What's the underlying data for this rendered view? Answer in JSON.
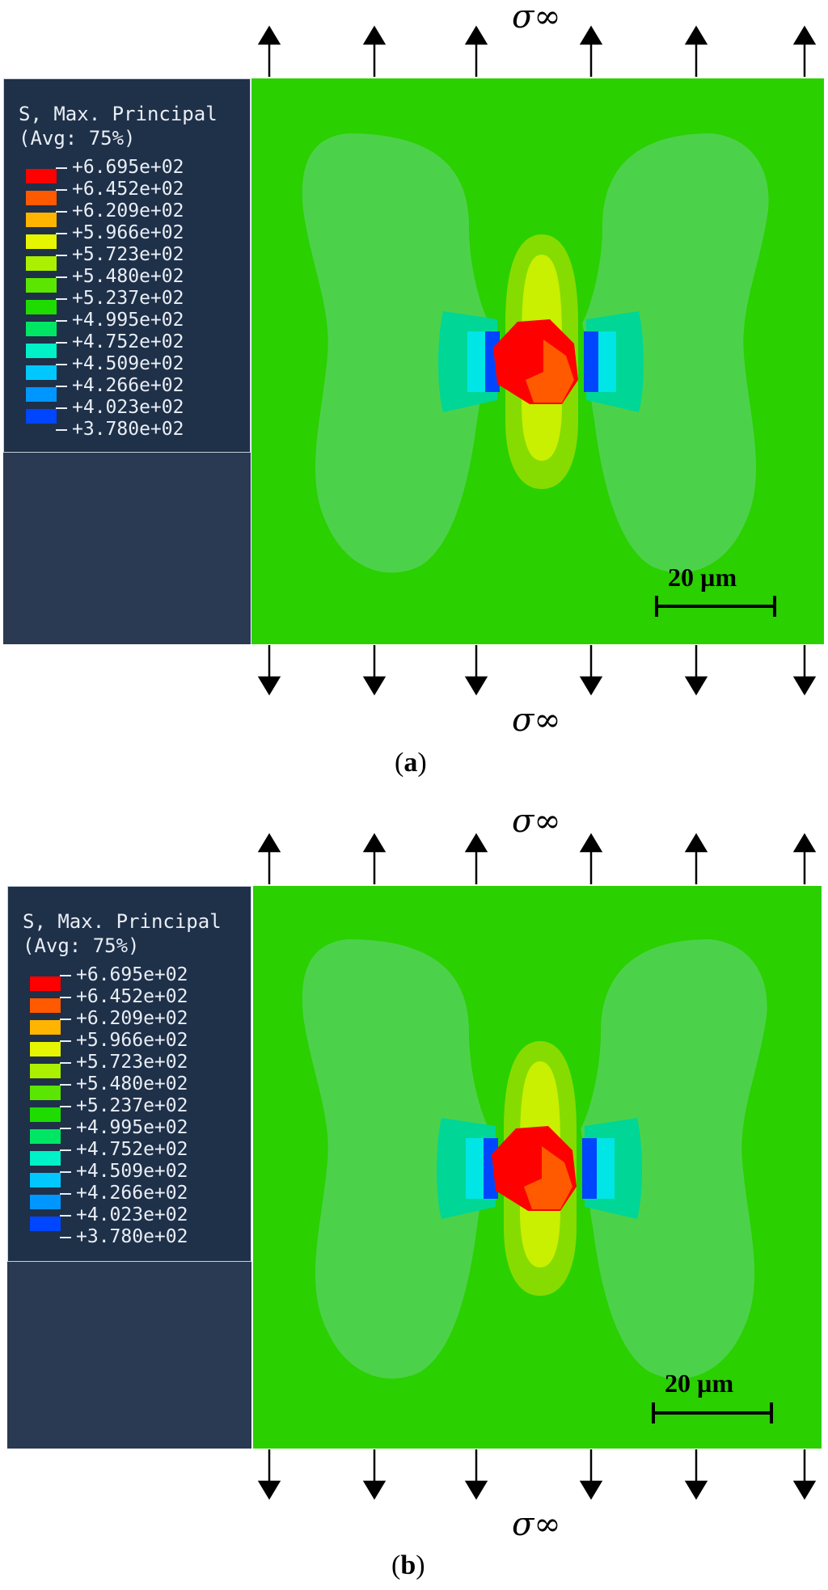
{
  "legend": {
    "title_line1": "S, Max. Principal",
    "title_line2": "(Avg: 75%)",
    "values": [
      "+6.695e+02",
      "+6.452e+02",
      "+6.209e+02",
      "+5.966e+02",
      "+5.723e+02",
      "+5.480e+02",
      "+5.237e+02",
      "+4.995e+02",
      "+4.752e+02",
      "+4.509e+02",
      "+4.266e+02",
      "+4.023e+02",
      "+3.780e+02"
    ],
    "colors": [
      "#ff0000",
      "#ff5a00",
      "#ffb400",
      "#e6f500",
      "#aaf000",
      "#5ae600",
      "#1edc00",
      "#00e664",
      "#00f0c8",
      "#00c8ff",
      "#0096ff",
      "#0046ff",
      "#0000ff"
    ]
  },
  "stress_symbol": "σ∞",
  "scale_bar": {
    "label": "20 µm"
  },
  "panels": [
    {
      "label": "a"
    },
    {
      "label": "b"
    }
  ],
  "colors": {
    "background_field": "#2ad000",
    "lobe": "#4cd24a",
    "panel_dark": "#1f3049"
  }
}
